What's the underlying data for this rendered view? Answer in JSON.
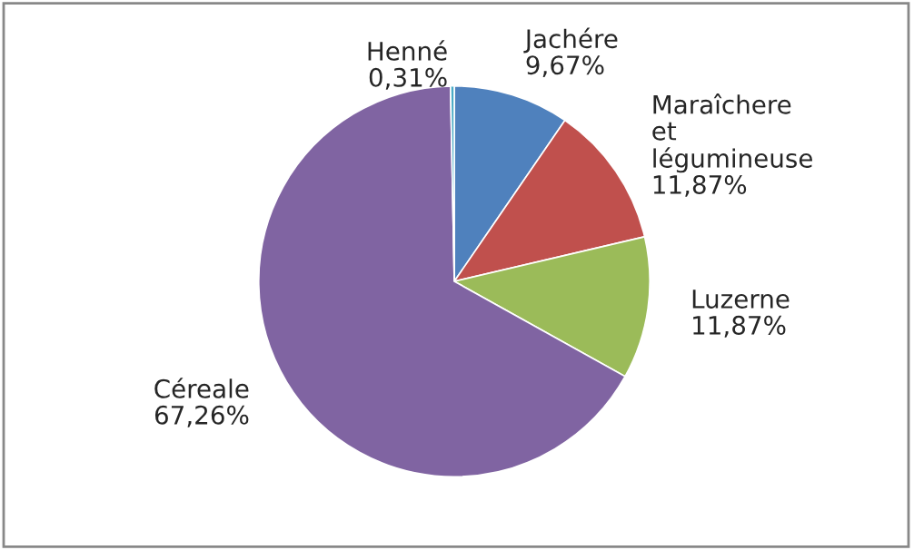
{
  "chart_data": {
    "type": "pie",
    "categories": [
      "Jachére",
      "Maraîchere et légumineuse",
      "Luzerne",
      "Céreale",
      "Henné"
    ],
    "values": [
      9.67,
      11.87,
      11.87,
      67.26,
      0.31
    ],
    "value_labels": [
      "9,67%",
      "11,87%",
      "11,87%",
      "67,26%",
      "0,31%"
    ],
    "colors": [
      "#4f81bd",
      "#c0504d",
      "#9bbb59",
      "#8064a2",
      "#4bacc6"
    ],
    "legend": false
  }
}
